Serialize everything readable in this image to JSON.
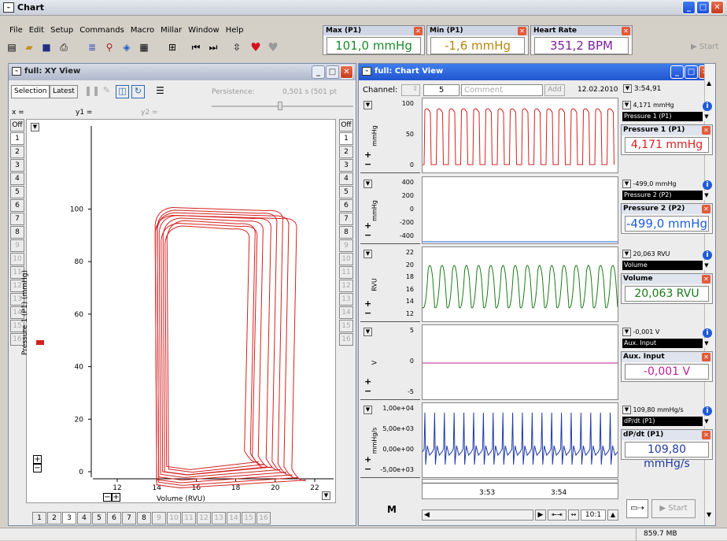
{
  "app": {
    "title": "Chart"
  },
  "menu": [
    "File",
    "Edit",
    "Setup",
    "Commands",
    "Macro",
    "Millar",
    "Window",
    "Help"
  ],
  "measures": [
    {
      "title": "Max (P1)",
      "value": "101,0 mmHg",
      "color": "#1a8a2a"
    },
    {
      "title": "Min (P1)",
      "value": "-1,6 mmHg",
      "color": "#b8860b"
    },
    {
      "title": "Heart Rate",
      "value": "351,2 BPM",
      "color": "#7a1fa0"
    }
  ],
  "toolbar_right": {
    "start": "Start"
  },
  "xy": {
    "title": "full: XY View",
    "selection": "Selection",
    "latest": "Latest",
    "persistence": "Persistence:",
    "persistence_value": "0,501 s (501 pt",
    "x_label": "x =",
    "y1_label": "y1 =",
    "y2_label": "y2 =",
    "off": "Off",
    "channels": [
      "1",
      "2",
      "3",
      "4",
      "5",
      "6",
      "7",
      "8",
      "9",
      "10",
      "11",
      "12",
      "13",
      "14",
      "15",
      "16"
    ],
    "tabs": [
      "1",
      "2",
      "3",
      "4",
      "5",
      "6",
      "7",
      "8",
      "9",
      "10",
      "11",
      "12",
      "13",
      "14",
      "15",
      "16"
    ],
    "selected_tab": "3",
    "yaxis_label": "Pressure 1 (P1) (mmHg)",
    "xaxis_label": "Volume (RVU)",
    "yticks": [
      "100",
      "80",
      "60",
      "40",
      "20",
      "0"
    ],
    "xticks": [
      "12",
      "14",
      "16",
      "18",
      "20",
      "22"
    ]
  },
  "chart": {
    "title": "full: Chart View",
    "channel_label": "Channel:",
    "channel_value": "5",
    "comment_placeholder": "Comment",
    "add": "Add",
    "date": "12.02.2010",
    "time": "3:54,91",
    "time_ticks": [
      "3:53",
      "3:54"
    ],
    "zoom": "10:1",
    "start": "Start",
    "channels": [
      {
        "unit": "mmHg",
        "ticks": [
          "100",
          "50",
          "0"
        ],
        "readout": "4,171 mmHg",
        "name": "Pressure 1 (P1)",
        "panel_title": "Pressure 1 (P1)",
        "panel_value": "4,171 mmHg",
        "color": "#d42020"
      },
      {
        "unit": "mmHg",
        "ticks": [
          "400",
          "200",
          "0",
          "-200",
          "-400"
        ],
        "readout": "-499,0 mmHg",
        "name": "Pressure 2 (P2)",
        "panel_title": "Pressure 2 (P2)",
        "panel_value": "-499,0 mmHg",
        "color": "#1f5bd6"
      },
      {
        "unit": "RVU",
        "ticks": [
          "22",
          "20",
          "18",
          "16",
          "14",
          "12"
        ],
        "readout": "20,063 RVU",
        "name": "Volume",
        "panel_title": "Volume",
        "panel_value": "20,063 RVU",
        "color": "#1a7a1a"
      },
      {
        "unit": "V",
        "ticks": [
          "5",
          "0",
          "-5"
        ],
        "readout": "-0,001 V",
        "name": "Aux. Input",
        "panel_title": "Aux. Input",
        "panel_value": "-0,001 V",
        "color": "#c0209a"
      },
      {
        "unit": "mmHg/s",
        "ticks": [
          "1,00e+04",
          "5,00e+03",
          "0,00e+00",
          "-5,00e+03"
        ],
        "readout": "109,80 mmHg/s",
        "name": "dP/dt (P1)",
        "panel_title": "dP/dt (P1)",
        "panel_value": "109,80 mmHg/s",
        "color": "#1f3aa8"
      }
    ]
  },
  "status": {
    "memory": "859.7 MB"
  }
}
